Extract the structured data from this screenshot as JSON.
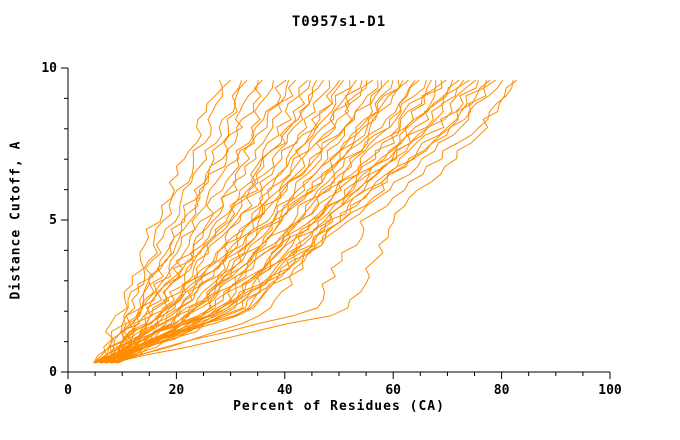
{
  "chart_data": {
    "type": "line",
    "title": "T0957s1-D1",
    "xlabel": "Percent of Residues (CA)",
    "ylabel": "Distance Cutoff, A",
    "xlim": [
      0,
      100
    ],
    "ylim": [
      0,
      10
    ],
    "x_major_ticks": [
      0,
      20,
      40,
      60,
      80,
      100
    ],
    "x_minor_step": 5,
    "y_major_ticks": [
      0,
      5,
      10
    ],
    "y_minor_step": 1,
    "grid": false,
    "legend": "none",
    "line_color": "#ff8c00",
    "axis_color": "#000000",
    "series": [
      {
        "points": [
          [
            5,
            0.3
          ],
          [
            10,
            2
          ],
          [
            16,
            5
          ],
          [
            24,
            8
          ],
          [
            28,
            9.6
          ]
        ]
      },
      {
        "points": [
          [
            6,
            0.3
          ],
          [
            11,
            2
          ],
          [
            18,
            5
          ],
          [
            26,
            8
          ],
          [
            30,
            9.6
          ]
        ]
      },
      {
        "points": [
          [
            7,
            0.3
          ],
          [
            12,
            2
          ],
          [
            19,
            5
          ],
          [
            28,
            8
          ],
          [
            32,
            9.6
          ]
        ]
      },
      {
        "points": [
          [
            8,
            0.3
          ],
          [
            12,
            2
          ],
          [
            21,
            5
          ],
          [
            29,
            8
          ],
          [
            33,
            9.6
          ]
        ]
      },
      {
        "points": [
          [
            9,
            0.3
          ],
          [
            13,
            2
          ],
          [
            22,
            5
          ],
          [
            31,
            8
          ],
          [
            35,
            9.6
          ]
        ]
      },
      {
        "points": [
          [
            5,
            0.3
          ],
          [
            13,
            2
          ],
          [
            22,
            5
          ],
          [
            32,
            8
          ],
          [
            36,
            9.6
          ]
        ]
      },
      {
        "points": [
          [
            6,
            0.3
          ],
          [
            14,
            2
          ],
          [
            24,
            5
          ],
          [
            34,
            8
          ],
          [
            38,
            9.6
          ]
        ]
      },
      {
        "points": [
          [
            7,
            0.3
          ],
          [
            14,
            2
          ],
          [
            25,
            5
          ],
          [
            35,
            8
          ],
          [
            40,
            9.6
          ]
        ]
      },
      {
        "points": [
          [
            8,
            0.3
          ],
          [
            15,
            2
          ],
          [
            26,
            5
          ],
          [
            36,
            8
          ],
          [
            41,
            9.6
          ]
        ]
      },
      {
        "points": [
          [
            9,
            0.3
          ],
          [
            15,
            2
          ],
          [
            27,
            5
          ],
          [
            37,
            8
          ],
          [
            42,
            9.6
          ]
        ]
      },
      {
        "points": [
          [
            5,
            0.3
          ],
          [
            16,
            2
          ],
          [
            28,
            5
          ],
          [
            39,
            8
          ],
          [
            44,
            9.6
          ]
        ]
      },
      {
        "points": [
          [
            6,
            0.3
          ],
          [
            16,
            2
          ],
          [
            29,
            5
          ],
          [
            40,
            8
          ],
          [
            45,
            9.6
          ]
        ]
      },
      {
        "points": [
          [
            7,
            0.3
          ],
          [
            17,
            2
          ],
          [
            29,
            5
          ],
          [
            41,
            8
          ],
          [
            46,
            9.6
          ]
        ]
      },
      {
        "points": [
          [
            8,
            0.3
          ],
          [
            17,
            2
          ],
          [
            30,
            5
          ],
          [
            42,
            8
          ],
          [
            47,
            9.6
          ]
        ]
      },
      {
        "points": [
          [
            9,
            0.3
          ],
          [
            18,
            2
          ],
          [
            31,
            5
          ],
          [
            43,
            8
          ],
          [
            48,
            9.6
          ]
        ]
      },
      {
        "points": [
          [
            5,
            0.3
          ],
          [
            18,
            2
          ],
          [
            32,
            5
          ],
          [
            45,
            8
          ],
          [
            50,
            9.6
          ]
        ]
      },
      {
        "points": [
          [
            6,
            0.3
          ],
          [
            19,
            2
          ],
          [
            33,
            5
          ],
          [
            45,
            8
          ],
          [
            51,
            9.6
          ]
        ]
      },
      {
        "points": [
          [
            7,
            0.3
          ],
          [
            19,
            2
          ],
          [
            34,
            5
          ],
          [
            46,
            8
          ],
          [
            52,
            9.6
          ]
        ]
      },
      {
        "points": [
          [
            8,
            0.3
          ],
          [
            20,
            2
          ],
          [
            34,
            5
          ],
          [
            47,
            8
          ],
          [
            53,
            9.6
          ]
        ]
      },
      {
        "points": [
          [
            9,
            0.3
          ],
          [
            20,
            2
          ],
          [
            35,
            5
          ],
          [
            48,
            8
          ],
          [
            54,
            9.6
          ]
        ]
      },
      {
        "points": [
          [
            5,
            0.3
          ],
          [
            21,
            2
          ],
          [
            36,
            5
          ],
          [
            49,
            8
          ],
          [
            55,
            9.6
          ]
        ]
      },
      {
        "points": [
          [
            6,
            0.3
          ],
          [
            21,
            2
          ],
          [
            36,
            5
          ],
          [
            50,
            8
          ],
          [
            56,
            9.6
          ]
        ]
      },
      {
        "points": [
          [
            7,
            0.3
          ],
          [
            22,
            2
          ],
          [
            37,
            5
          ],
          [
            51,
            8
          ],
          [
            57,
            9.6
          ]
        ]
      },
      {
        "points": [
          [
            8,
            0.3
          ],
          [
            22,
            2
          ],
          [
            38,
            5
          ],
          [
            52,
            8
          ],
          [
            58,
            9.6
          ]
        ]
      },
      {
        "points": [
          [
            9,
            0.3
          ],
          [
            23,
            2
          ],
          [
            38,
            5
          ],
          [
            53,
            8
          ],
          [
            59,
            9.6
          ]
        ]
      },
      {
        "points": [
          [
            5,
            0.3
          ],
          [
            23,
            2
          ],
          [
            39,
            5
          ],
          [
            54,
            8
          ],
          [
            60,
            9.6
          ]
        ]
      },
      {
        "points": [
          [
            6,
            0.3
          ],
          [
            24,
            2
          ],
          [
            40,
            5
          ],
          [
            55,
            8
          ],
          [
            61,
            9.6
          ]
        ]
      },
      {
        "points": [
          [
            7,
            0.3
          ],
          [
            24,
            2
          ],
          [
            40,
            5
          ],
          [
            55,
            8
          ],
          [
            62,
            9.6
          ]
        ]
      },
      {
        "points": [
          [
            8,
            0.3
          ],
          [
            25,
            2
          ],
          [
            41,
            5
          ],
          [
            56,
            8
          ],
          [
            63,
            9.6
          ]
        ]
      },
      {
        "points": [
          [
            9,
            0.3
          ],
          [
            25,
            2
          ],
          [
            42,
            5
          ],
          [
            57,
            8
          ],
          [
            64,
            9.6
          ]
        ]
      },
      {
        "points": [
          [
            5,
            0.3
          ],
          [
            26,
            2
          ],
          [
            42,
            5
          ],
          [
            58,
            8
          ],
          [
            65,
            9.6
          ]
        ]
      },
      {
        "points": [
          [
            6,
            0.3
          ],
          [
            26,
            2
          ],
          [
            43,
            5
          ],
          [
            59,
            8
          ],
          [
            66,
            9.6
          ]
        ]
      },
      {
        "points": [
          [
            7,
            0.3
          ],
          [
            27,
            2
          ],
          [
            44,
            5
          ],
          [
            60,
            8
          ],
          [
            67,
            9.6
          ]
        ]
      },
      {
        "points": [
          [
            8,
            0.3
          ],
          [
            27,
            2
          ],
          [
            44,
            5
          ],
          [
            61,
            8
          ],
          [
            68,
            9.6
          ]
        ]
      },
      {
        "points": [
          [
            9,
            0.3
          ],
          [
            28,
            2
          ],
          [
            45,
            5
          ],
          [
            62,
            8
          ],
          [
            69,
            9.6
          ]
        ]
      },
      {
        "points": [
          [
            5,
            0.3
          ],
          [
            28,
            2
          ],
          [
            46,
            5
          ],
          [
            63,
            8
          ],
          [
            70,
            9.6
          ]
        ]
      },
      {
        "points": [
          [
            6,
            0.3
          ],
          [
            29,
            2
          ],
          [
            46,
            5
          ],
          [
            63,
            8
          ],
          [
            71,
            9.6
          ]
        ]
      },
      {
        "points": [
          [
            7,
            0.3
          ],
          [
            29,
            2
          ],
          [
            47,
            5
          ],
          [
            64,
            8
          ],
          [
            72,
            9.6
          ]
        ]
      },
      {
        "points": [
          [
            8,
            0.3
          ],
          [
            30,
            2
          ],
          [
            48,
            5
          ],
          [
            65,
            8
          ],
          [
            73,
            9.6
          ]
        ]
      },
      {
        "points": [
          [
            9,
            0.3
          ],
          [
            30,
            2
          ],
          [
            48,
            5
          ],
          [
            66,
            8
          ],
          [
            74,
            9.6
          ]
        ]
      },
      {
        "points": [
          [
            5,
            0.3
          ],
          [
            31,
            2
          ],
          [
            49,
            5
          ],
          [
            67,
            8
          ],
          [
            75,
            9.6
          ]
        ]
      },
      {
        "points": [
          [
            6,
            0.3
          ],
          [
            31,
            2
          ],
          [
            50,
            5
          ],
          [
            68,
            8
          ],
          [
            76,
            9.6
          ]
        ]
      },
      {
        "points": [
          [
            7,
            0.3
          ],
          [
            32,
            2
          ],
          [
            50,
            5
          ],
          [
            69,
            8
          ],
          [
            77,
            9.6
          ]
        ]
      },
      {
        "points": [
          [
            8,
            0.3
          ],
          [
            32,
            2
          ],
          [
            51,
            5
          ],
          [
            70,
            8
          ],
          [
            78,
            9.6
          ]
        ]
      },
      {
        "points": [
          [
            9,
            0.3
          ],
          [
            38,
            2
          ],
          [
            48,
            5
          ],
          [
            71,
            8
          ],
          [
            79,
            9.6
          ]
        ]
      },
      {
        "points": [
          [
            5,
            0.3
          ],
          [
            33,
            2
          ],
          [
            52,
            5
          ],
          [
            72,
            8
          ],
          [
            80,
            9.6
          ]
        ]
      },
      {
        "points": [
          [
            7,
            0.3
          ],
          [
            45,
            2
          ],
          [
            55,
            5
          ],
          [
            75,
            8
          ],
          [
            82,
            9.6
          ]
        ]
      },
      {
        "points": [
          [
            8,
            0.3
          ],
          [
            52,
            2
          ],
          [
            60,
            5
          ],
          [
            76,
            8
          ],
          [
            83,
            9.6
          ]
        ]
      }
    ]
  }
}
